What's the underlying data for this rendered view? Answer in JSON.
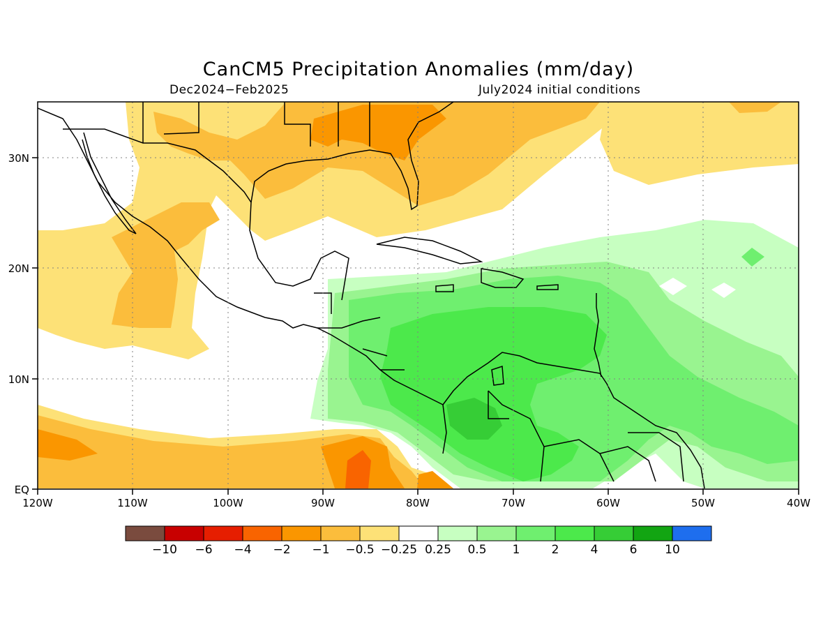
{
  "title": "CanCM5 Precipitation Anomalies (mm/day)",
  "subtitle_left": "Dec2024−Feb2025",
  "subtitle_right": "July2024 initial conditions",
  "axes": {
    "x_ticks": [
      "120W",
      "110W",
      "100W",
      "90W",
      "80W",
      "70W",
      "60W",
      "50W",
      "40W"
    ],
    "y_ticks": [
      "EQ",
      "10N",
      "20N",
      "30N"
    ],
    "lon_range": [
      -120,
      -40
    ],
    "lat_range": [
      0,
      35
    ],
    "grid": "dotted"
  },
  "colorbar": {
    "colors": [
      "#7a4b3e",
      "#c80000",
      "#e61e00",
      "#f96400",
      "#fa9600",
      "#fbbd3c",
      "#fde177",
      "#ffffff",
      "#c7ffc1",
      "#99f490",
      "#6fef6f",
      "#4ce94b",
      "#36cd36",
      "#12a512",
      "#1e6eee"
    ],
    "labels": [
      "−10",
      "−6",
      "−4",
      "−2",
      "−1",
      "−0.5",
      "−0.25",
      "0.25",
      "0.5",
      "1",
      "2",
      "4",
      "6",
      "10"
    ]
  }
}
